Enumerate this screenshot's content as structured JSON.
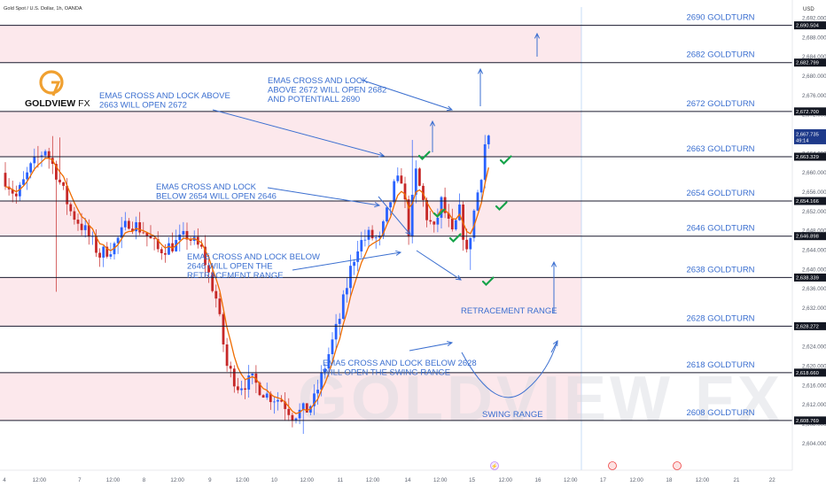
{
  "chart_data": {
    "type": "candlestick",
    "title": "Gold Spot / U.S. Dollar, 1h, OANDA",
    "currency": "USD",
    "brand": {
      "name": "GOLDVIEW",
      "suffix": "FX",
      "watermark": "GOLDVIEW FX"
    },
    "ylim": [
      2600.5,
      2693.0
    ],
    "y_ticks": [
      2604,
      2608,
      2612,
      2616,
      2620,
      2624,
      2628,
      2632,
      2636,
      2640,
      2644,
      2648,
      2652,
      2656,
      2660,
      2664,
      2668,
      2672,
      2676,
      2680,
      2684,
      2688,
      2692
    ],
    "y_tick_labels": [
      "2,604.000",
      "2,608.000",
      "2,612.000",
      "2,616.000",
      "2,620.000",
      "2,624.000",
      "2,628.000",
      "2,632.000",
      "2,636.000",
      "2,640.000",
      "2,644.000",
      "2,648.000",
      "2,652.000",
      "2,656.000",
      "2,660.000",
      "2,664.000",
      "2,668.000",
      "2,672.000",
      "2,676.000",
      "2,680.000",
      "2,684.000",
      "2,688.000",
      "2,692.000"
    ],
    "x_ticks": [
      {
        "label": "4",
        "pos": 0.0
      },
      {
        "label": "12:00",
        "pos": 0.045
      },
      {
        "label": "7",
        "pos": 0.097
      },
      {
        "label": "12:00",
        "pos": 0.14
      },
      {
        "label": "8",
        "pos": 0.18
      },
      {
        "label": "12:00",
        "pos": 0.223
      },
      {
        "label": "9",
        "pos": 0.265
      },
      {
        "label": "12:00",
        "pos": 0.307
      },
      {
        "label": "10",
        "pos": 0.348
      },
      {
        "label": "12:00",
        "pos": 0.39
      },
      {
        "label": "11",
        "pos": 0.433
      },
      {
        "label": "12:00",
        "pos": 0.475
      },
      {
        "label": "14",
        "pos": 0.52
      },
      {
        "label": "12:00",
        "pos": 0.562
      },
      {
        "label": "15",
        "pos": 0.603
      },
      {
        "label": "12:00",
        "pos": 0.646
      },
      {
        "label": "16",
        "pos": 0.688
      },
      {
        "label": "12:00",
        "pos": 0.73
      },
      {
        "label": "17",
        "pos": 0.772
      },
      {
        "label": "12:00",
        "pos": 0.815
      },
      {
        "label": "18",
        "pos": 0.857
      },
      {
        "label": "12:00",
        "pos": 0.9
      },
      {
        "label": "21",
        "pos": 0.944
      },
      {
        "label": "22",
        "pos": 0.99
      }
    ],
    "levels": [
      {
        "price": 2690.504,
        "label": "2690 GOLDTURN",
        "tag": "2,690.504"
      },
      {
        "price": 2682.799,
        "label": "2682 GOLDTURN",
        "tag": "2,682.799"
      },
      {
        "price": 2672.7,
        "label": "2672 GOLDTURN",
        "tag": "2,672.700"
      },
      {
        "price": 2663.329,
        "label": "2663 GOLDTURN",
        "tag": "2,663.329"
      },
      {
        "price": 2654.166,
        "label": "2654 GOLDTURN",
        "tag": "2,654.166"
      },
      {
        "price": 2646.898,
        "label": "2646 GOLDTURN",
        "tag": "2,646.898"
      },
      {
        "price": 2638.339,
        "label": "2638 GOLDTURN",
        "tag": "2,638.339"
      },
      {
        "price": 2628.272,
        "label": "2628 GOLDTURN",
        "tag": "2,628.272"
      },
      {
        "price": 2618.66,
        "label": "2618 GOLDTURN",
        "tag": "2,618.660"
      },
      {
        "price": 2608.769,
        "label": "2608 GOLDTURN",
        "tag": "2,608.769"
      }
    ],
    "current_price": {
      "value": 2667.735,
      "tag": "2,667.735",
      "countdown": "49:14"
    },
    "pink_zones": [
      [
        2682.799,
        2690.504
      ],
      [
        2663.329,
        2672.7
      ],
      [
        2646.898,
        2654.166
      ],
      [
        2628.272,
        2638.339
      ],
      [
        2608.769,
        2618.66
      ]
    ],
    "annotations": [
      {
        "lines": [
          "EMA5 CROSS AND LOCK ABOVE",
          "2663 WILL OPEN 2672"
        ]
      },
      {
        "lines": [
          "EMA5 CROSS AND LOCK",
          "ABOVE 2672 WILL OPEN 2682",
          "AND POTENTIALL 2690"
        ]
      },
      {
        "lines": [
          "EMA5 CROSS AND LOCK",
          "BELOW 2654 WILL OPEN 2646"
        ]
      },
      {
        "lines": [
          "EMA5 CROSS AND LOCK BELOW",
          "2646 WILL OPEN THE",
          "RETRACEMENT RANGE"
        ]
      },
      {
        "lines": [
          "EMA5 CROSS AND LOCK BELOW 2628",
          "WILL OPEN THE SWING RANGE"
        ]
      },
      {
        "lines": [
          "RETRACEMENT RANGE"
        ]
      },
      {
        "lines": [
          "SWING RANGE"
        ]
      }
    ],
    "colors": {
      "up": "#2962ff",
      "down": "#c62828",
      "ema": "#ef6c00",
      "zone": "#fbe0e6",
      "level_line": "#1a1a2e",
      "annotation": "#3b6fd0",
      "check": "#16a34a"
    },
    "anchors": [
      [
        0,
        2660
      ],
      [
        4,
        2655
      ],
      [
        8,
        2661
      ],
      [
        12,
        2665
      ],
      [
        15,
        2660
      ],
      [
        19,
        2652
      ],
      [
        23,
        2648
      ],
      [
        27,
        2643
      ],
      [
        31,
        2645
      ],
      [
        35,
        2650
      ],
      [
        39,
        2648
      ],
      [
        43,
        2644
      ],
      [
        47,
        2645
      ],
      [
        51,
        2647
      ],
      [
        55,
        2644
      ],
      [
        59,
        2634
      ],
      [
        62,
        2620
      ],
      [
        65,
        2616
      ],
      [
        69,
        2617
      ],
      [
        73,
        2614
      ],
      [
        77,
        2613
      ],
      [
        80,
        2610
      ],
      [
        84,
        2611
      ],
      [
        86,
        2613
      ],
      [
        89,
        2620
      ],
      [
        93,
        2630
      ],
      [
        96,
        2640
      ],
      [
        98,
        2645
      ],
      [
        101,
        2647
      ],
      [
        104,
        2646
      ],
      [
        108,
        2657
      ],
      [
        110,
        2659
      ],
      [
        112,
        2648
      ],
      [
        114,
        2660
      ],
      [
        117,
        2651
      ],
      [
        119,
        2648
      ],
      [
        121,
        2654
      ],
      [
        124,
        2647
      ],
      [
        126,
        2652
      ],
      [
        128,
        2643
      ],
      [
        130,
        2652
      ],
      [
        132,
        2660
      ],
      [
        133,
        2666
      ]
    ]
  }
}
